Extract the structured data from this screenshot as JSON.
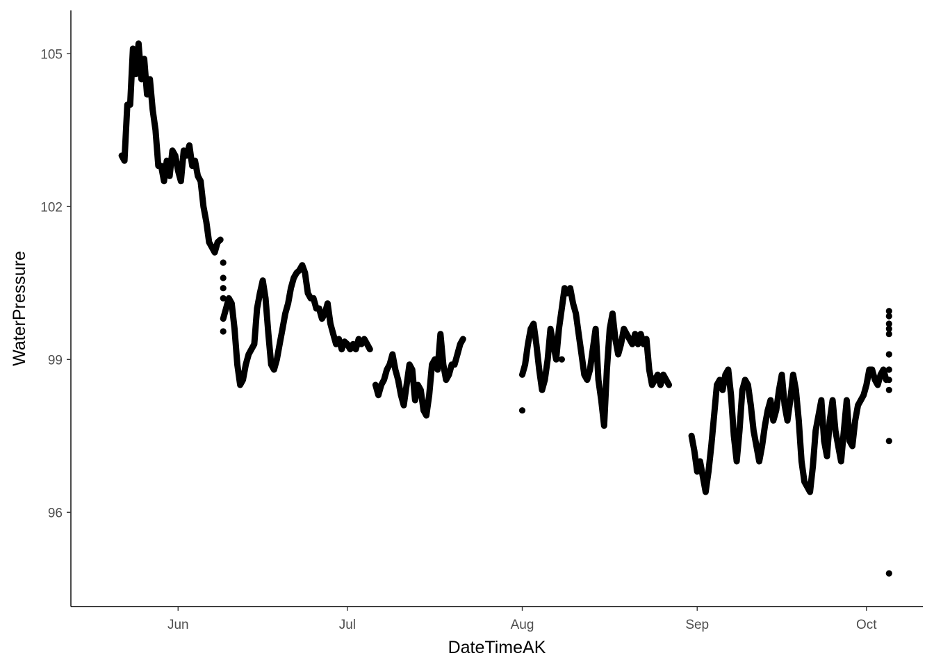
{
  "chart_data": {
    "type": "scatter",
    "title": "",
    "xlabel": "DateTimeAK",
    "ylabel": "WaterPressure",
    "x_type": "date",
    "xlim": [
      "2023-05-13",
      "2023-10-11"
    ],
    "ylim": [
      94.15,
      105.85
    ],
    "x_ticks": [
      {
        "value": "2023-06-01",
        "label": "Jun"
      },
      {
        "value": "2023-07-01",
        "label": "Jul"
      },
      {
        "value": "2023-08-01",
        "label": "Aug"
      },
      {
        "value": "2023-09-01",
        "label": "Sep"
      },
      {
        "value": "2023-10-01",
        "label": "Oct"
      }
    ],
    "y_ticks": [
      96,
      99,
      102,
      105
    ],
    "grid": false,
    "legend": "none",
    "color": "#000000",
    "series": [
      {
        "style": "dense",
        "values": [
          [
            "2023-05-22",
            103.0
          ],
          [
            "2023-05-22T12",
            102.9
          ],
          [
            "2023-05-23",
            104.0
          ],
          [
            "2023-05-23T12",
            104.0
          ],
          [
            "2023-05-24",
            105.1
          ],
          [
            "2023-05-24T12",
            104.6
          ],
          [
            "2023-05-25",
            105.2
          ],
          [
            "2023-05-25T12",
            104.5
          ],
          [
            "2023-05-26",
            104.9
          ],
          [
            "2023-05-26T12",
            104.2
          ],
          [
            "2023-05-27",
            104.5
          ],
          [
            "2023-05-27T12",
            103.9
          ],
          [
            "2023-05-28",
            103.5
          ],
          [
            "2023-05-28T12",
            102.8
          ],
          [
            "2023-05-29",
            102.8
          ],
          [
            "2023-05-29T12",
            102.5
          ],
          [
            "2023-05-30",
            102.9
          ],
          [
            "2023-05-30T12",
            102.6
          ],
          [
            "2023-05-31",
            103.1
          ],
          [
            "2023-05-31T12",
            103.0
          ],
          [
            "2023-06-01",
            102.7
          ],
          [
            "2023-06-01T12",
            102.5
          ],
          [
            "2023-06-02",
            103.1
          ],
          [
            "2023-06-02T12",
            103.0
          ],
          [
            "2023-06-03",
            103.2
          ],
          [
            "2023-06-03T12",
            102.8
          ],
          [
            "2023-06-04",
            102.9
          ],
          [
            "2023-06-04T12",
            102.6
          ],
          [
            "2023-06-05",
            102.5
          ],
          [
            "2023-06-05T12",
            102.0
          ],
          [
            "2023-06-06",
            101.7
          ],
          [
            "2023-06-06T12",
            101.3
          ],
          [
            "2023-06-07",
            101.2
          ],
          [
            "2023-06-07T12",
            101.1
          ],
          [
            "2023-06-08",
            101.3
          ],
          [
            "2023-06-08T12",
            101.35
          ]
        ]
      },
      {
        "style": "dense",
        "values": [
          [
            "2023-06-09",
            99.8
          ],
          [
            "2023-06-09T12",
            100.0
          ],
          [
            "2023-06-10",
            100.2
          ],
          [
            "2023-06-10T12",
            100.1
          ],
          [
            "2023-06-11",
            99.6
          ],
          [
            "2023-06-11T12",
            98.9
          ],
          [
            "2023-06-12",
            98.5
          ],
          [
            "2023-06-12T12",
            98.6
          ],
          [
            "2023-06-13",
            98.9
          ],
          [
            "2023-06-13T12",
            99.1
          ],
          [
            "2023-06-14",
            99.2
          ],
          [
            "2023-06-14T12",
            99.3
          ],
          [
            "2023-06-15",
            100.0
          ],
          [
            "2023-06-15T12",
            100.3
          ],
          [
            "2023-06-16",
            100.55
          ],
          [
            "2023-06-16T12",
            100.2
          ],
          [
            "2023-06-17",
            99.5
          ],
          [
            "2023-06-17T12",
            98.9
          ],
          [
            "2023-06-18",
            98.8
          ],
          [
            "2023-06-18T12",
            99.0
          ],
          [
            "2023-06-19",
            99.3
          ],
          [
            "2023-06-19T12",
            99.6
          ],
          [
            "2023-06-20",
            99.9
          ],
          [
            "2023-06-20T12",
            100.1
          ],
          [
            "2023-06-21",
            100.4
          ],
          [
            "2023-06-21T12",
            100.6
          ],
          [
            "2023-06-22",
            100.7
          ],
          [
            "2023-06-22T12",
            100.75
          ],
          [
            "2023-06-23",
            100.85
          ],
          [
            "2023-06-23T12",
            100.7
          ],
          [
            "2023-06-24",
            100.3
          ],
          [
            "2023-06-24T12",
            100.2
          ],
          [
            "2023-06-25",
            100.2
          ],
          [
            "2023-06-25T12",
            100.0
          ],
          [
            "2023-06-26",
            100.0
          ],
          [
            "2023-06-26T12",
            99.8
          ],
          [
            "2023-06-27",
            99.9
          ],
          [
            "2023-06-27T12",
            100.1
          ],
          [
            "2023-06-28",
            99.7
          ],
          [
            "2023-06-28T12",
            99.5
          ],
          [
            "2023-06-29",
            99.3
          ],
          [
            "2023-06-29T12",
            99.4
          ],
          [
            "2023-06-30",
            99.2
          ],
          [
            "2023-06-30T12",
            99.35
          ],
          [
            "2023-07-01",
            99.3
          ],
          [
            "2023-07-01T12",
            99.2
          ],
          [
            "2023-07-02",
            99.3
          ],
          [
            "2023-07-02T12",
            99.2
          ],
          [
            "2023-07-03",
            99.4
          ],
          [
            "2023-07-03T12",
            99.3
          ],
          [
            "2023-07-04",
            99.4
          ],
          [
            "2023-07-04T12",
            99.3
          ],
          [
            "2023-07-05",
            99.2
          ]
        ]
      },
      {
        "style": "dense",
        "values": [
          [
            "2023-07-06",
            98.5
          ],
          [
            "2023-07-06T12",
            98.3
          ],
          [
            "2023-07-07",
            98.5
          ],
          [
            "2023-07-07T12",
            98.6
          ],
          [
            "2023-07-08",
            98.8
          ],
          [
            "2023-07-08T12",
            98.9
          ],
          [
            "2023-07-09",
            99.1
          ],
          [
            "2023-07-09T12",
            98.8
          ],
          [
            "2023-07-10",
            98.6
          ],
          [
            "2023-07-10T12",
            98.3
          ],
          [
            "2023-07-11",
            98.1
          ],
          [
            "2023-07-11T12",
            98.5
          ],
          [
            "2023-07-12",
            98.9
          ],
          [
            "2023-07-12T12",
            98.8
          ],
          [
            "2023-07-13",
            98.2
          ],
          [
            "2023-07-13T12",
            98.5
          ],
          [
            "2023-07-14",
            98.4
          ],
          [
            "2023-07-14T12",
            98.0
          ],
          [
            "2023-07-15",
            97.9
          ],
          [
            "2023-07-15T12",
            98.3
          ],
          [
            "2023-07-16",
            98.9
          ],
          [
            "2023-07-16T12",
            99.0
          ],
          [
            "2023-07-17",
            98.8
          ],
          [
            "2023-07-17T12",
            99.5
          ],
          [
            "2023-07-18",
            98.9
          ],
          [
            "2023-07-18T12",
            98.6
          ],
          [
            "2023-07-19",
            98.7
          ],
          [
            "2023-07-19T12",
            98.9
          ],
          [
            "2023-07-20",
            98.9
          ],
          [
            "2023-07-20T12",
            99.1
          ],
          [
            "2023-07-21",
            99.3
          ],
          [
            "2023-07-21T12",
            99.4
          ]
        ]
      },
      {
        "style": "dense",
        "values": [
          [
            "2023-08-01",
            98.7
          ],
          [
            "2023-08-01T12",
            98.9
          ],
          [
            "2023-08-02",
            99.3
          ],
          [
            "2023-08-02T12",
            99.6
          ],
          [
            "2023-08-03",
            99.7
          ],
          [
            "2023-08-03T12",
            99.3
          ],
          [
            "2023-08-04",
            98.8
          ],
          [
            "2023-08-04T12",
            98.4
          ],
          [
            "2023-08-05",
            98.6
          ],
          [
            "2023-08-05T12",
            99.0
          ],
          [
            "2023-08-06",
            99.6
          ],
          [
            "2023-08-06T12",
            99.3
          ],
          [
            "2023-08-07",
            99.0
          ],
          [
            "2023-08-07T12",
            99.6
          ],
          [
            "2023-08-08",
            100.0
          ],
          [
            "2023-08-08T12",
            100.4
          ],
          [
            "2023-08-09",
            100.3
          ],
          [
            "2023-08-09T12",
            100.4
          ],
          [
            "2023-08-10",
            100.1
          ],
          [
            "2023-08-10T12",
            99.9
          ],
          [
            "2023-08-11",
            99.5
          ],
          [
            "2023-08-11T12",
            99.1
          ],
          [
            "2023-08-12",
            98.7
          ],
          [
            "2023-08-12T12",
            98.6
          ],
          [
            "2023-08-13",
            98.8
          ],
          [
            "2023-08-13T12",
            99.2
          ],
          [
            "2023-08-14",
            99.6
          ],
          [
            "2023-08-14T12",
            98.6
          ],
          [
            "2023-08-15",
            98.2
          ],
          [
            "2023-08-15T12",
            97.7
          ],
          [
            "2023-08-16",
            98.8
          ],
          [
            "2023-08-16T12",
            99.6
          ],
          [
            "2023-08-17",
            99.9
          ],
          [
            "2023-08-17T12",
            99.4
          ],
          [
            "2023-08-18",
            99.1
          ],
          [
            "2023-08-18T12",
            99.3
          ],
          [
            "2023-08-19",
            99.6
          ],
          [
            "2023-08-19T12",
            99.5
          ],
          [
            "2023-08-20",
            99.4
          ],
          [
            "2023-08-20T12",
            99.3
          ],
          [
            "2023-08-21",
            99.5
          ],
          [
            "2023-08-21T12",
            99.3
          ],
          [
            "2023-08-22",
            99.5
          ],
          [
            "2023-08-22T12",
            99.3
          ],
          [
            "2023-08-23",
            99.4
          ],
          [
            "2023-08-23T12",
            98.8
          ],
          [
            "2023-08-24",
            98.5
          ],
          [
            "2023-08-24T12",
            98.6
          ],
          [
            "2023-08-25",
            98.7
          ],
          [
            "2023-08-25T12",
            98.5
          ],
          [
            "2023-08-26",
            98.7
          ],
          [
            "2023-08-26T12",
            98.6
          ],
          [
            "2023-08-27",
            98.5
          ]
        ]
      },
      {
        "style": "dense",
        "values": [
          [
            "2023-08-31",
            97.5
          ],
          [
            "2023-08-31T12",
            97.2
          ],
          [
            "2023-09-01",
            96.8
          ],
          [
            "2023-09-01T12",
            97.0
          ],
          [
            "2023-09-02",
            96.7
          ],
          [
            "2023-09-02T12",
            96.4
          ],
          [
            "2023-09-03",
            96.8
          ],
          [
            "2023-09-03T12",
            97.3
          ],
          [
            "2023-09-04",
            97.9
          ],
          [
            "2023-09-04T12",
            98.5
          ],
          [
            "2023-09-05",
            98.6
          ],
          [
            "2023-09-05T12",
            98.4
          ],
          [
            "2023-09-06",
            98.7
          ],
          [
            "2023-09-06T12",
            98.8
          ],
          [
            "2023-09-07",
            98.3
          ],
          [
            "2023-09-07T12",
            97.5
          ],
          [
            "2023-09-08",
            97.0
          ],
          [
            "2023-09-08T12",
            97.6
          ],
          [
            "2023-09-09",
            98.4
          ],
          [
            "2023-09-09T12",
            98.6
          ],
          [
            "2023-09-10",
            98.5
          ],
          [
            "2023-09-10T12",
            98.1
          ],
          [
            "2023-09-11",
            97.6
          ],
          [
            "2023-09-11T12",
            97.3
          ],
          [
            "2023-09-12",
            97.0
          ],
          [
            "2023-09-12T12",
            97.3
          ],
          [
            "2023-09-13",
            97.7
          ],
          [
            "2023-09-13T12",
            98.0
          ],
          [
            "2023-09-14",
            98.2
          ],
          [
            "2023-09-14T12",
            97.8
          ],
          [
            "2023-09-15",
            98.0
          ],
          [
            "2023-09-15T12",
            98.4
          ],
          [
            "2023-09-16",
            98.7
          ],
          [
            "2023-09-16T12",
            98.1
          ],
          [
            "2023-09-17",
            97.8
          ],
          [
            "2023-09-17T12",
            98.2
          ],
          [
            "2023-09-18",
            98.7
          ],
          [
            "2023-09-18T12",
            98.4
          ],
          [
            "2023-09-19",
            97.8
          ],
          [
            "2023-09-19T12",
            97.0
          ],
          [
            "2023-09-20",
            96.6
          ],
          [
            "2023-09-20T12",
            96.5
          ],
          [
            "2023-09-21",
            96.4
          ],
          [
            "2023-09-21T12",
            96.9
          ],
          [
            "2023-09-22",
            97.6
          ],
          [
            "2023-09-22T12",
            97.9
          ],
          [
            "2023-09-23",
            98.2
          ],
          [
            "2023-09-23T12",
            97.4
          ],
          [
            "2023-09-24",
            97.1
          ],
          [
            "2023-09-24T12",
            97.8
          ],
          [
            "2023-09-25",
            98.2
          ],
          [
            "2023-09-25T12",
            97.6
          ],
          [
            "2023-09-26",
            97.3
          ],
          [
            "2023-09-26T12",
            97.0
          ],
          [
            "2023-09-27",
            97.6
          ],
          [
            "2023-09-27T12",
            98.2
          ],
          [
            "2023-09-28",
            97.4
          ],
          [
            "2023-09-28T12",
            97.3
          ],
          [
            "2023-09-29",
            97.8
          ],
          [
            "2023-09-29T12",
            98.1
          ],
          [
            "2023-09-30",
            98.2
          ],
          [
            "2023-09-30T12",
            98.3
          ],
          [
            "2023-10-01",
            98.5
          ],
          [
            "2023-10-01T12",
            98.8
          ],
          [
            "2023-10-02",
            98.8
          ],
          [
            "2023-10-02T12",
            98.6
          ],
          [
            "2023-10-03",
            98.5
          ],
          [
            "2023-10-03T12",
            98.7
          ],
          [
            "2023-10-04",
            98.8
          ],
          [
            "2023-10-04T12",
            98.6
          ]
        ]
      },
      {
        "style": "points",
        "values": [
          [
            "2023-06-09",
            100.9
          ],
          [
            "2023-06-09",
            100.6
          ],
          [
            "2023-06-09",
            100.4
          ],
          [
            "2023-06-09",
            100.2
          ],
          [
            "2023-06-09",
            99.55
          ],
          [
            "2023-08-01",
            98.0
          ],
          [
            "2023-08-08",
            99.0
          ],
          [
            "2023-10-05",
            99.95
          ],
          [
            "2023-10-05",
            99.85
          ],
          [
            "2023-10-05",
            99.7
          ],
          [
            "2023-10-05",
            99.6
          ],
          [
            "2023-10-05",
            99.5
          ],
          [
            "2023-10-05",
            99.1
          ],
          [
            "2023-10-05",
            98.8
          ],
          [
            "2023-10-05",
            98.6
          ],
          [
            "2023-10-05",
            98.4
          ],
          [
            "2023-10-05",
            97.4
          ],
          [
            "2023-10-05",
            94.8
          ]
        ]
      }
    ]
  }
}
